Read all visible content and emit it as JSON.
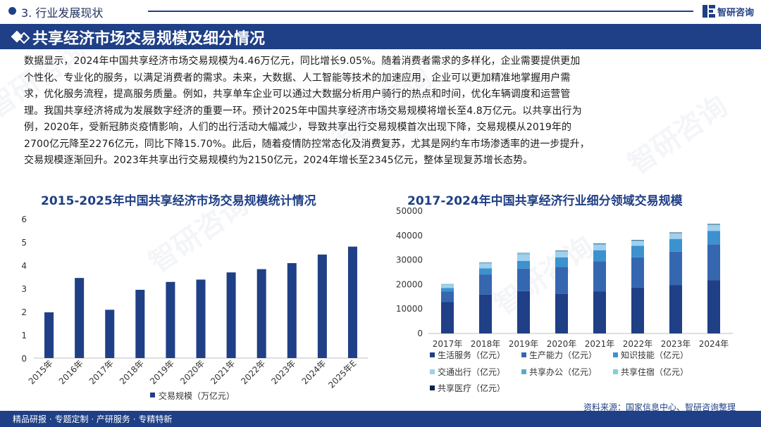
{
  "header": {
    "section": "3. 行业发展现状",
    "logo_text": "智研咨询"
  },
  "title": "共享经济市场交易规模及细分情况",
  "paragraph_lines": [
    "数据显示，2024年中国共享经济市场交易规模为4.46万亿元，同比增长9.05%。随着消费者需求的多样化，企业需要提供更加",
    "个性化、专业化的服务，以满足消费者的需求。未来，大数据、人工智能等技术的加速应用，企业可以更加精准地掌握用户需",
    "求，优化服务流程，提高服务质量。例如，共享单车企业可以通过大数据分析用户骑行的热点和时间，优化车辆调度和运营管",
    "理。我国共享经济将成为发展数字经济的重要一环。预计2025年中国共享经济市场交易规模将增长至4.8万亿元。以共享出行为",
    "例，2020年，受新冠肺炎疫情影响，人们的出行活动大幅减少，导致共享出行交易规模首次出现下降，交易规模从2019年的",
    "2700亿元降至2276亿元，同比下降15.70%。此后，随着疫情防控常态化及消费复苏，尤其是网约车市场渗透率的进一步提升，",
    "交易规模逐渐回升。2023年共享出行交易规模约为2150亿元，2024年增长至2345亿元，整体呈现复苏增长态势。"
  ],
  "chart_data": [
    {
      "type": "bar",
      "title": "2015-2025年中国共享经济市场交易规模统计情况",
      "categories": [
        "2015年",
        "2016年",
        "2017年",
        "2018年",
        "2019年",
        "2020年",
        "2021年",
        "2022年",
        "2023年",
        "2024年",
        "2025年E"
      ],
      "series": [
        {
          "name": "交易规模（万亿元）",
          "values": [
            1.97,
            3.45,
            2.08,
            2.94,
            3.28,
            3.38,
            3.69,
            3.83,
            4.09,
            4.46,
            4.8
          ],
          "color": "#1f3f86"
        }
      ],
      "ylim": [
        0,
        6
      ],
      "yticks": [
        0,
        1,
        2,
        3,
        4,
        5,
        6
      ],
      "grid": false,
      "legend": "bottom"
    },
    {
      "type": "bar",
      "stacked": true,
      "title": "2017-2024年中国共享经济行业细分领域交易规模",
      "categories": [
        "2017年",
        "2018年",
        "2019年",
        "2020年",
        "2021年",
        "2022年",
        "2023年",
        "2024年"
      ],
      "series": [
        {
          "name": "生活服务（亿元）",
          "color": "#1f3f86",
          "values": [
            12900,
            15900,
            17300,
            16200,
            17100,
            18700,
            19800,
            21800
          ]
        },
        {
          "name": "生产能力（亿元）",
          "color": "#3566b0",
          "values": [
            4300,
            8200,
            9200,
            11000,
            12400,
            12400,
            13600,
            14600
          ]
        },
        {
          "name": "知识技能（亿元）",
          "color": "#3b92cf",
          "values": [
            1400,
            2500,
            3100,
            3900,
            4500,
            4700,
            5200,
            5500
          ]
        },
        {
          "name": "交通出行（亿元）",
          "color": "#9fd0ee",
          "values": [
            1300,
            2000,
            2700,
            2300,
            2300,
            2000,
            2200,
            2300
          ]
        },
        {
          "name": "共享办公（亿元）",
          "color": "#5da9c9",
          "values": [
            100,
            200,
            230,
            170,
            200,
            150,
            150,
            200
          ]
        },
        {
          "name": "共享住宿（亿元）",
          "color": "#7fd0d2",
          "values": [
            100,
            170,
            220,
            160,
            150,
            120,
            120,
            120
          ]
        },
        {
          "name": "共享医疗（亿元）",
          "color": "#0c2350",
          "values": [
            60,
            90,
            110,
            140,
            140,
            150,
            150,
            170
          ]
        }
      ],
      "ylim": [
        0,
        50000
      ],
      "yticks": [
        0,
        10000,
        20000,
        30000,
        40000,
        50000
      ],
      "grid": false,
      "legend": "bottom"
    }
  ],
  "footer": {
    "note": "精品研报 · 专题定制 · 产研服务 · 专精特新",
    "source": "资料来源：国家信息中心、智研咨询整理"
  }
}
